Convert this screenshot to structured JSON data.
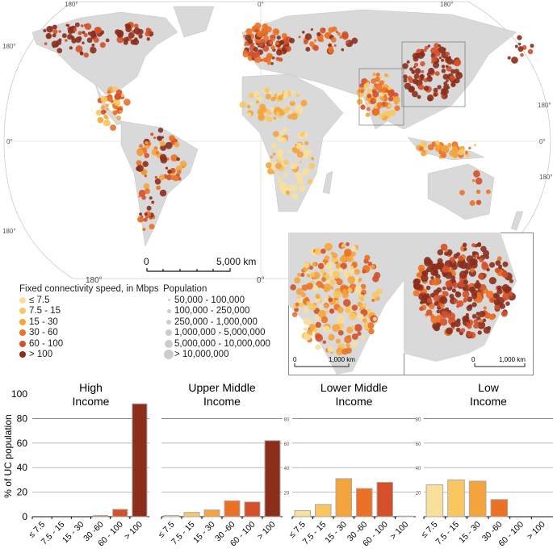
{
  "map": {
    "graticule_labels": {
      "top": [
        "180°",
        "0°",
        "180°"
      ],
      "left": [
        "180°",
        "0°",
        "180°"
      ],
      "right": [
        "180°",
        "0°",
        "180°"
      ],
      "bottom": [
        "180°",
        "0°"
      ]
    },
    "scale_bar": {
      "start": "0",
      "end": "5,000 km"
    },
    "inset_india": {
      "scale_start": "0",
      "scale_end": "1,000 km"
    },
    "inset_china": {
      "scale_start": "0",
      "scale_end": "1,000 km"
    },
    "land_color": "#d9d9d9"
  },
  "legend": {
    "speed_title": "Fixed connectivity speed, in Mbps",
    "speed_items": [
      {
        "label": "≤ 7.5",
        "color": "#f8df9a"
      },
      {
        "label": "7.5 - 15",
        "color": "#f9c661"
      },
      {
        "label": "15 - 30",
        "color": "#f4a43c"
      },
      {
        "label": "30 - 60",
        "color": "#ea7125"
      },
      {
        "label": "60 - 100",
        "color": "#d3502a"
      },
      {
        "label": "> 100",
        "color": "#8b2e1c"
      }
    ],
    "population_title": "Population",
    "population_items": [
      "50,000 - 100,000",
      "100,000 - 250,000",
      "250,000 - 1,000,000",
      "1,000,000 - 5,000,000",
      "5,000,000 - 10,000,000",
      "> 10,000,000"
    ]
  },
  "chart_data": {
    "type": "bar",
    "ylabel": "% of UC population",
    "ylim": [
      0,
      100
    ],
    "yticks": [
      0,
      20,
      40,
      60,
      80,
      100
    ],
    "small_yticks": [
      20,
      40,
      60,
      80
    ],
    "grid": true,
    "categories": [
      "≤ 7.5",
      "7.5 - 15",
      "15 - 30",
      "30 -60",
      "60 - 100",
      "> 100"
    ],
    "colors": [
      "#f8df9a",
      "#f9c661",
      "#f4a43c",
      "#ea7125",
      "#d3502a",
      "#8b2e1c"
    ],
    "panels": [
      {
        "title": [
          "High",
          "Income"
        ],
        "values": [
          0,
          0,
          0,
          1,
          6,
          92
        ]
      },
      {
        "title": [
          "Upper Middle",
          "Income"
        ],
        "values": [
          1,
          3.5,
          5.5,
          13,
          12,
          62
        ]
      },
      {
        "title": [
          "Lower Middle",
          "Income"
        ],
        "values": [
          5,
          10,
          31,
          23,
          28,
          0.5
        ]
      },
      {
        "title": [
          "Low",
          "Income"
        ],
        "values": [
          26,
          30,
          29,
          14,
          0,
          0
        ]
      }
    ]
  }
}
